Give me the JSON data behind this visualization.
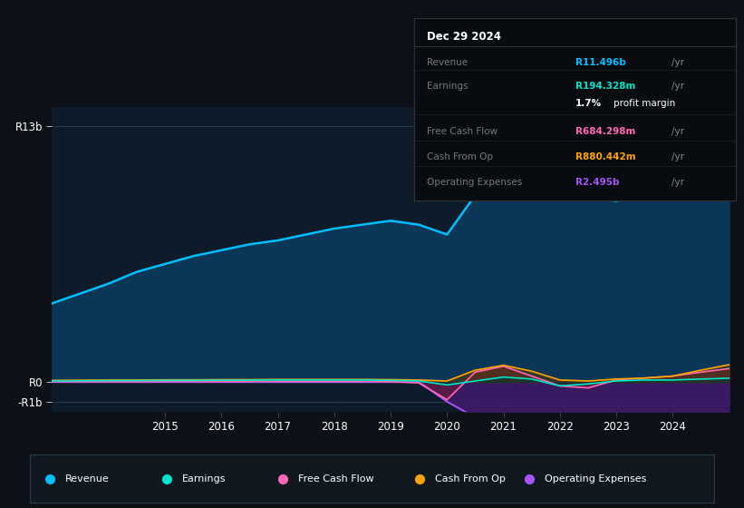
{
  "background_color": "#0d1117",
  "plot_bg_color": "#0d1b2a",
  "tooltip_bg": "#080c10",
  "years": [
    2013.0,
    2013.5,
    2014.0,
    2014.5,
    2015.0,
    2015.5,
    2016.0,
    2016.5,
    2017.0,
    2017.5,
    2018.0,
    2018.5,
    2019.0,
    2019.5,
    2020.0,
    2020.5,
    2021.0,
    2021.5,
    2022.0,
    2022.5,
    2023.0,
    2023.5,
    2024.0,
    2024.5,
    2025.0
  ],
  "revenue": [
    4.0,
    4.5,
    5.0,
    5.6,
    6.0,
    6.4,
    6.7,
    7.0,
    7.2,
    7.5,
    7.8,
    8.0,
    8.2,
    8.0,
    7.5,
    9.5,
    12.8,
    11.8,
    10.5,
    9.5,
    9.2,
    9.8,
    10.2,
    10.8,
    11.5
  ],
  "earnings": [
    0.05,
    0.06,
    0.07,
    0.07,
    0.08,
    0.08,
    0.09,
    0.09,
    0.1,
    0.1,
    0.1,
    0.1,
    0.08,
    0.05,
    -0.15,
    0.05,
    0.25,
    0.15,
    -0.2,
    -0.1,
    0.05,
    0.1,
    0.1,
    0.15,
    0.19
  ],
  "free_cash_flow": [
    0.02,
    0.02,
    0.02,
    0.02,
    0.03,
    0.03,
    0.03,
    0.03,
    0.03,
    0.03,
    0.03,
    0.03,
    0.02,
    -0.05,
    -0.9,
    0.5,
    0.8,
    0.3,
    -0.2,
    -0.3,
    0.1,
    0.2,
    0.3,
    0.5,
    0.68
  ],
  "cash_from_op": [
    0.08,
    0.09,
    0.1,
    0.1,
    0.11,
    0.11,
    0.12,
    0.12,
    0.13,
    0.13,
    0.13,
    0.13,
    0.12,
    0.1,
    0.05,
    0.6,
    0.85,
    0.55,
    0.1,
    0.05,
    0.15,
    0.2,
    0.3,
    0.6,
    0.88
  ],
  "op_expenses": [
    0.0,
    0.0,
    0.0,
    0.0,
    0.0,
    0.0,
    0.0,
    0.0,
    0.0,
    0.0,
    0.0,
    0.0,
    0.0,
    0.0,
    -1.0,
    -1.8,
    -2.2,
    -2.0,
    -2.0,
    -2.1,
    -2.2,
    -2.3,
    -2.3,
    -2.4,
    -2.5
  ],
  "ylim": [
    -1.5,
    14.0
  ],
  "xticks": [
    2015,
    2016,
    2017,
    2018,
    2019,
    2020,
    2021,
    2022,
    2023,
    2024
  ],
  "ytick_vals": [
    -1.0,
    0.0,
    13.0
  ],
  "ytick_labels": [
    "-R1b",
    "R0",
    "R13b"
  ],
  "revenue_line_color": "#00bfff",
  "revenue_fill_color": "#0a3a5c",
  "earnings_line_color": "#00e5cc",
  "earnings_fill_color": "#003a34",
  "fcf_line_color": "#ff69b4",
  "fcf_fill_color": "#6b1a3a",
  "cfo_line_color": "#ffa500",
  "cfo_fill_color": "#5a3800",
  "opex_line_color": "#a855f7",
  "opex_fill_color": "#3d1a6b",
  "legend_items": [
    {
      "label": "Revenue",
      "color": "#00bfff"
    },
    {
      "label": "Earnings",
      "color": "#00e5cc"
    },
    {
      "label": "Free Cash Flow",
      "color": "#ff69b4"
    },
    {
      "label": "Cash From Op",
      "color": "#ffa500"
    },
    {
      "label": "Operating Expenses",
      "color": "#a855f7"
    }
  ],
  "tooltip_date": "Dec 29 2024",
  "tooltip_rows": [
    {
      "label": "Revenue",
      "value": "R11.496b",
      "unit": "/yr",
      "color": "#00bfff",
      "sub": null
    },
    {
      "label": "Earnings",
      "value": "R194.328m",
      "unit": "/yr",
      "color": "#00e5cc",
      "sub": "1.7% profit margin"
    },
    {
      "label": "Free Cash Flow",
      "value": "R684.298m",
      "unit": "/yr",
      "color": "#ff69b4",
      "sub": null
    },
    {
      "label": "Cash From Op",
      "value": "R880.442m",
      "unit": "/yr",
      "color": "#ffa500",
      "sub": null
    },
    {
      "label": "Operating Expenses",
      "value": "R2.495b",
      "unit": "/yr",
      "color": "#a855f7",
      "sub": null
    }
  ]
}
